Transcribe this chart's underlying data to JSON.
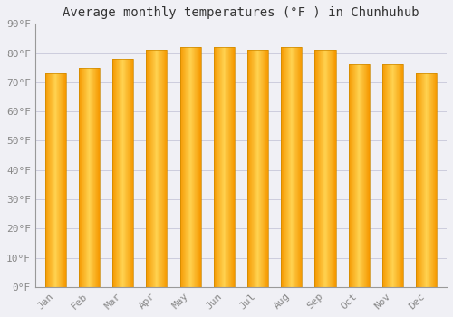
{
  "title": "Average monthly temperatures (°F ) in Chunhuhub",
  "months": [
    "Jan",
    "Feb",
    "Mar",
    "Apr",
    "May",
    "Jun",
    "Jul",
    "Aug",
    "Sep",
    "Oct",
    "Nov",
    "Dec"
  ],
  "values": [
    73,
    75,
    78,
    81,
    82,
    82,
    81,
    82,
    81,
    76,
    76,
    73
  ],
  "bar_color_left": "#F5A800",
  "bar_color_center": "#FFCC44",
  "bar_color_right": "#F5A800",
  "bar_edge_color": "#CC8800",
  "background_color": "#F0F0F5",
  "plot_bg_color": "#F0F0F5",
  "grid_color": "#CCCCDD",
  "ylim": [
    0,
    90
  ],
  "yticks": [
    0,
    10,
    20,
    30,
    40,
    50,
    60,
    70,
    80,
    90
  ],
  "ytick_labels": [
    "0°F",
    "10°F",
    "20°F",
    "30°F",
    "40°F",
    "50°F",
    "60°F",
    "70°F",
    "80°F",
    "90°F"
  ],
  "tick_color": "#888888",
  "title_fontsize": 10,
  "tick_fontsize": 8,
  "font_family": "monospace"
}
